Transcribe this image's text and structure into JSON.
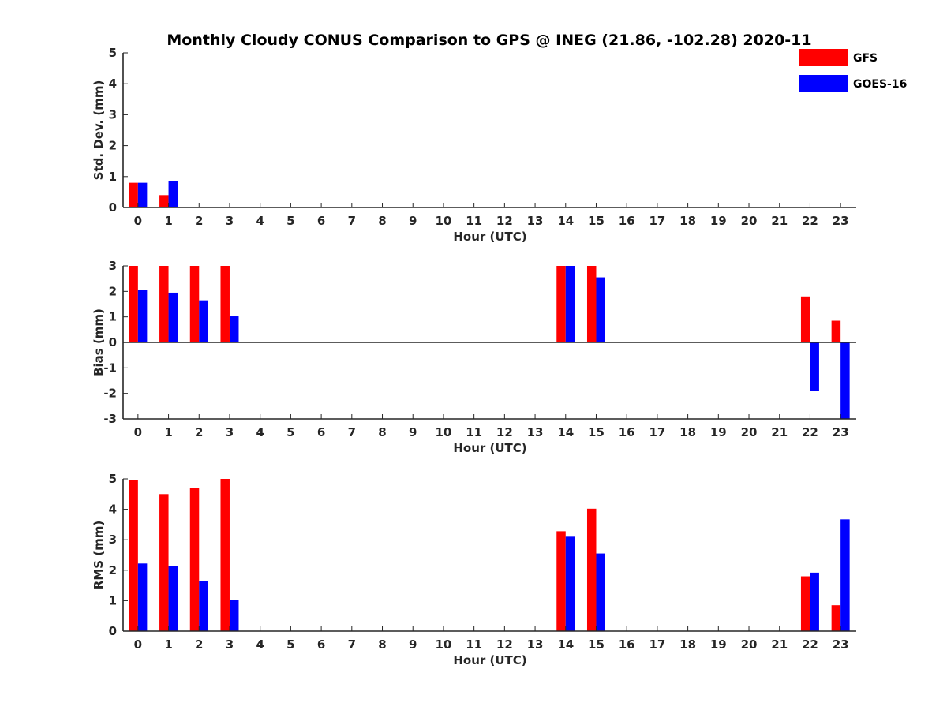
{
  "chart_data": {
    "type": "bar",
    "title": "Monthly Cloudy CONUS Comparison to GPS @ INEG (21.86, -102.28) 2020-11",
    "categories": [
      "0",
      "1",
      "2",
      "3",
      "4",
      "5",
      "6",
      "7",
      "8",
      "9",
      "10",
      "11",
      "12",
      "13",
      "14",
      "15",
      "16",
      "17",
      "18",
      "19",
      "20",
      "21",
      "22",
      "23"
    ],
    "legend": {
      "placement": "top-right",
      "entries": [
        "GFS",
        "GOES-16"
      ]
    },
    "colors": {
      "GFS": "#ff0000",
      "GOES-16": "#0000ff",
      "axis": "#262626"
    },
    "panels": [
      {
        "ylabel": "Std. Dev. (mm)",
        "xlabel": "Hour (UTC)",
        "ylim": [
          0,
          5
        ],
        "yticks": [
          0,
          1,
          2,
          3,
          4,
          5
        ],
        "series": [
          {
            "name": "GFS",
            "values": [
              0.8,
              0.4,
              null,
              null,
              null,
              null,
              null,
              null,
              null,
              null,
              null,
              null,
              null,
              null,
              null,
              null,
              null,
              null,
              null,
              null,
              null,
              null,
              null,
              null
            ]
          },
          {
            "name": "GOES-16",
            "values": [
              0.8,
              0.85,
              null,
              null,
              null,
              null,
              null,
              null,
              null,
              null,
              null,
              null,
              null,
              null,
              null,
              null,
              null,
              null,
              null,
              null,
              null,
              null,
              null,
              null
            ]
          }
        ]
      },
      {
        "ylabel": "Bias (mm)",
        "xlabel": "Hour (UTC)",
        "ylim": [
          -3,
          3
        ],
        "yticks": [
          -3,
          -2,
          -1,
          0,
          1,
          2,
          3
        ],
        "series": [
          {
            "name": "GFS",
            "values": [
              3.0,
              3.0,
              3.0,
              3.0,
              null,
              null,
              null,
              null,
              null,
              null,
              null,
              null,
              null,
              null,
              3.0,
              3.0,
              null,
              null,
              null,
              null,
              null,
              null,
              1.8,
              0.85
            ]
          },
          {
            "name": "GOES-16",
            "values": [
              2.05,
              1.95,
              1.65,
              1.02,
              null,
              null,
              null,
              null,
              null,
              null,
              null,
              null,
              null,
              null,
              3.0,
              2.55,
              null,
              null,
              null,
              null,
              null,
              null,
              -1.9,
              -3.0
            ]
          }
        ]
      },
      {
        "ylabel": "RMS (mm)",
        "xlabel": "Hour (UTC)",
        "ylim": [
          0,
          5
        ],
        "yticks": [
          0,
          1,
          2,
          3,
          4,
          5
        ],
        "series": [
          {
            "name": "GFS",
            "values": [
              4.95,
              4.5,
              4.7,
              5.0,
              null,
              null,
              null,
              null,
              null,
              null,
              null,
              null,
              null,
              null,
              3.28,
              4.02,
              null,
              null,
              null,
              null,
              null,
              null,
              1.8,
              0.85
            ]
          },
          {
            "name": "GOES-16",
            "values": [
              2.22,
              2.13,
              1.65,
              1.02,
              null,
              null,
              null,
              null,
              null,
              null,
              null,
              null,
              null,
              null,
              3.1,
              2.55,
              null,
              null,
              null,
              null,
              null,
              null,
              1.92,
              3.67
            ]
          }
        ]
      }
    ]
  }
}
